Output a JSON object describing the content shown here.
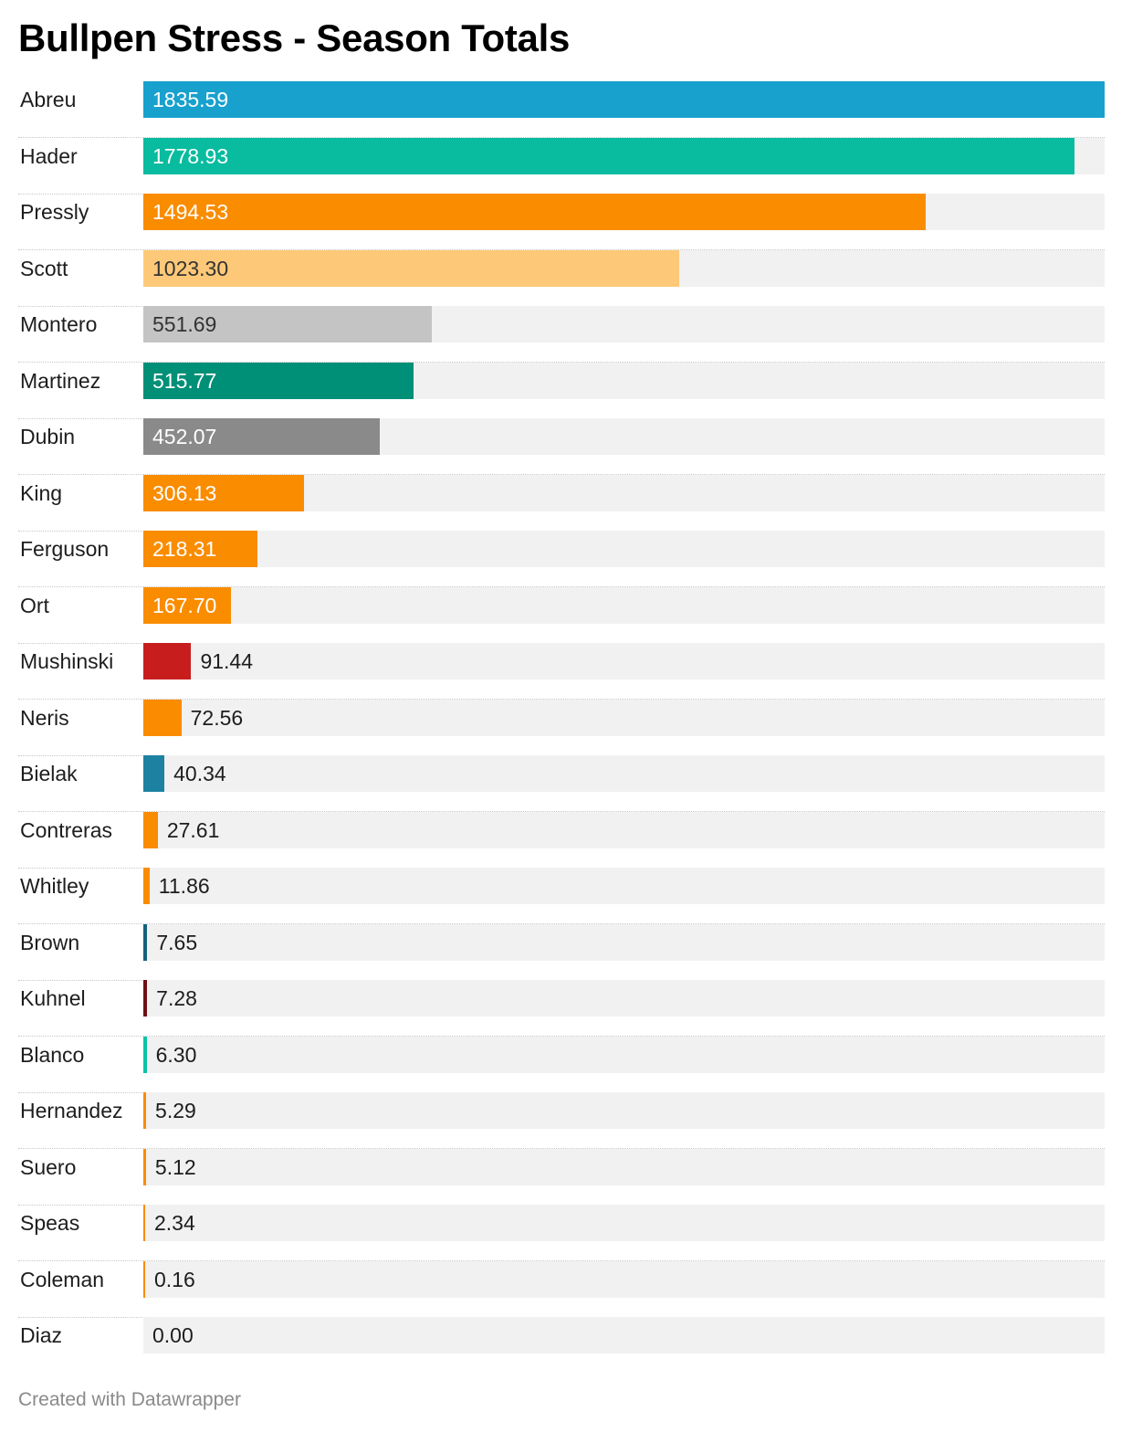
{
  "title": "Bullpen Stress - Season Totals",
  "footer": "Created with Datawrapper",
  "chart_data": {
    "type": "bar",
    "orientation": "horizontal",
    "title": "Bullpen Stress - Season Totals",
    "xlim": [
      0,
      1835.59
    ],
    "grid": false,
    "categories": [
      "Abreu",
      "Hader",
      "Pressly",
      "Scott",
      "Montero",
      "Martinez",
      "Dubin",
      "King",
      "Ferguson",
      "Ort",
      "Mushinski",
      "Neris",
      "Bielak",
      "Contreras",
      "Whitley",
      "Brown",
      "Kuhnel",
      "Blanco",
      "Hernandez",
      "Suero",
      "Speas",
      "Coleman",
      "Diaz"
    ],
    "values": [
      1835.59,
      1778.93,
      1494.53,
      1023.3,
      551.69,
      515.77,
      452.07,
      306.13,
      218.31,
      167.7,
      91.44,
      72.56,
      40.34,
      27.61,
      11.86,
      7.65,
      7.28,
      6.3,
      5.29,
      5.12,
      2.34,
      0.16,
      0.0
    ],
    "value_labels": [
      "1835.59",
      "1778.93",
      "1494.53",
      "1023.30",
      "551.69",
      "515.77",
      "452.07",
      "306.13",
      "218.31",
      "167.70",
      "91.44",
      "72.56",
      "40.34",
      "27.61",
      "11.86",
      "7.65",
      "7.28",
      "6.30",
      "5.29",
      "5.12",
      "2.34",
      "0.16",
      "0.00"
    ],
    "colors": [
      "#18a1cd",
      "#09bb9f",
      "#fa8c00",
      "#fdc978",
      "#c4c4c4",
      "#008f77",
      "#8a8a8a",
      "#fa8c00",
      "#fa8c00",
      "#fa8c00",
      "#c71e1d",
      "#fa8c00",
      "#1d81a2",
      "#fa8c00",
      "#fa8c00",
      "#15607a",
      "#6e1016",
      "#0ac3a6",
      "#fa8c00",
      "#fa8c00",
      "#fa8c00",
      "#fa8c00",
      "#fa8c00"
    ],
    "label_text_colors": [
      "#ffffff",
      "#ffffff",
      "#ffffff",
      "#333333",
      "#333333",
      "#ffffff",
      "#ffffff",
      "#ffffff",
      "#ffffff",
      "#ffffff",
      "#1d1d1d",
      "#1d1d1d",
      "#1d1d1d",
      "#1d1d1d",
      "#1d1d1d",
      "#1d1d1d",
      "#1d1d1d",
      "#1d1d1d",
      "#1d1d1d",
      "#1d1d1d",
      "#1d1d1d",
      "#1d1d1d",
      "#1d1d1d"
    ]
  }
}
